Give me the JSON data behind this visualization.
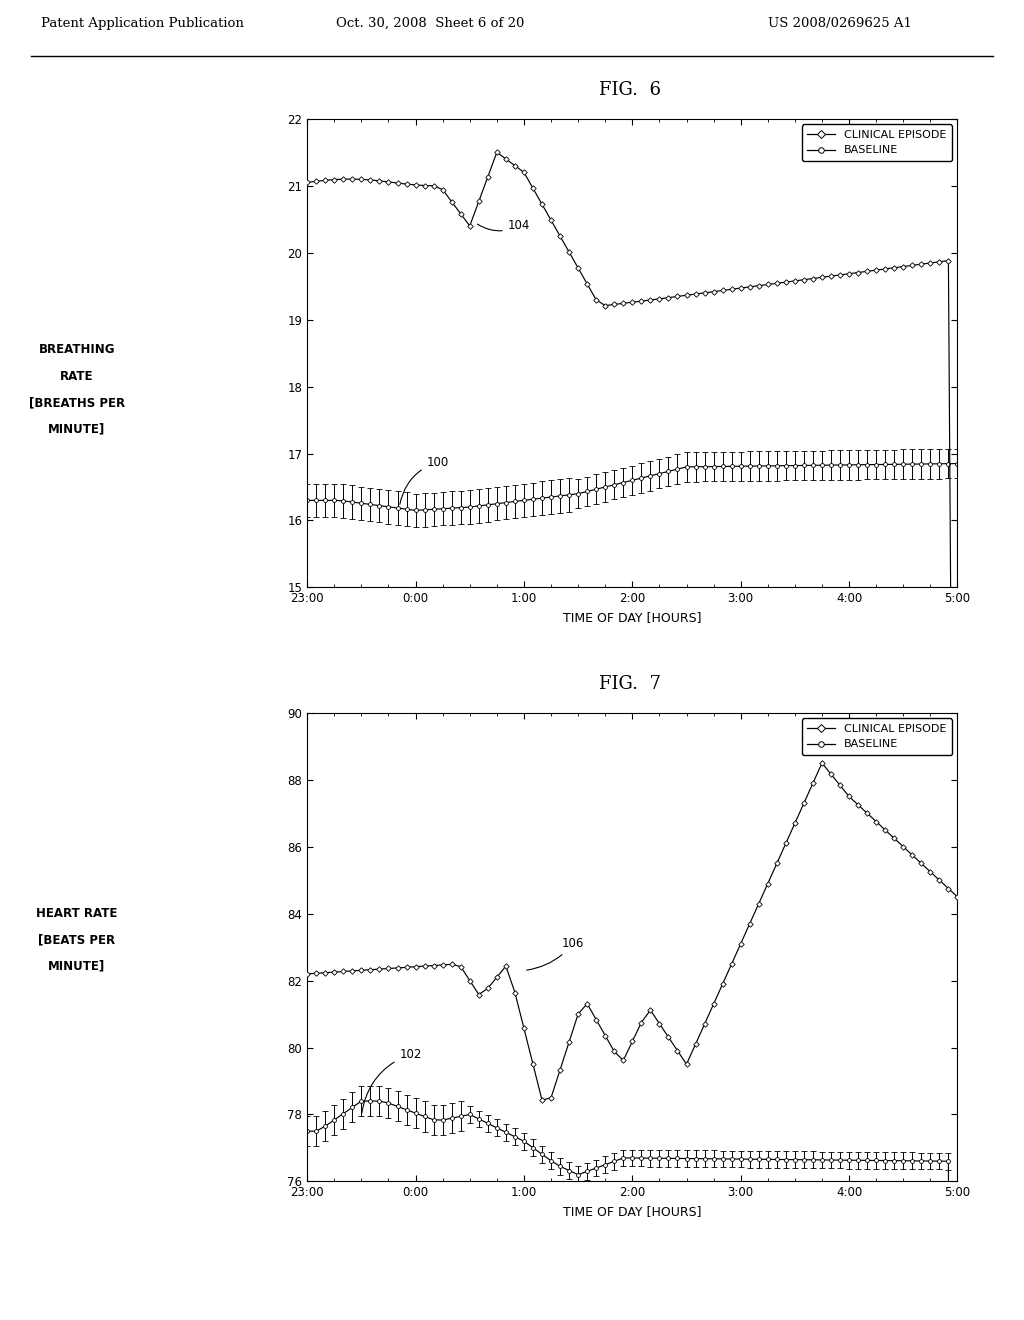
{
  "header_left": "Patent Application Publication",
  "header_mid": "Oct. 30, 2008  Sheet 6 of 20",
  "header_right": "US 2008/0269625 A1",
  "fig6_title": "FIG.  6",
  "fig7_title": "FIG.  7",
  "fig6_ylabel_lines": [
    "BREATHING",
    "RATE",
    "[BREATHS PER",
    "MINUTE]"
  ],
  "fig7_ylabel_lines": [
    "HEART RATE",
    "[BEATS PER",
    "MINUTE]"
  ],
  "xlabel": "TIME OF DAY [HOURS]",
  "xtick_labels": [
    "23:00",
    "0:00",
    "1:00",
    "2:00",
    "3:00",
    "4:00",
    "5:00"
  ],
  "fig6_ylim": [
    15,
    22
  ],
  "fig6_yticks": [
    15,
    16,
    17,
    18,
    19,
    20,
    21,
    22
  ],
  "fig7_ylim": [
    76,
    90
  ],
  "fig7_yticks": [
    76,
    78,
    80,
    82,
    84,
    86,
    88,
    90
  ],
  "legend_labels": [
    "CLINICAL EPISODE",
    "BASELINE"
  ],
  "annotation_100": "100",
  "annotation_102": "102",
  "annotation_104": "104",
  "annotation_106": "106",
  "background_color": "#ffffff",
  "line_color": "#000000"
}
